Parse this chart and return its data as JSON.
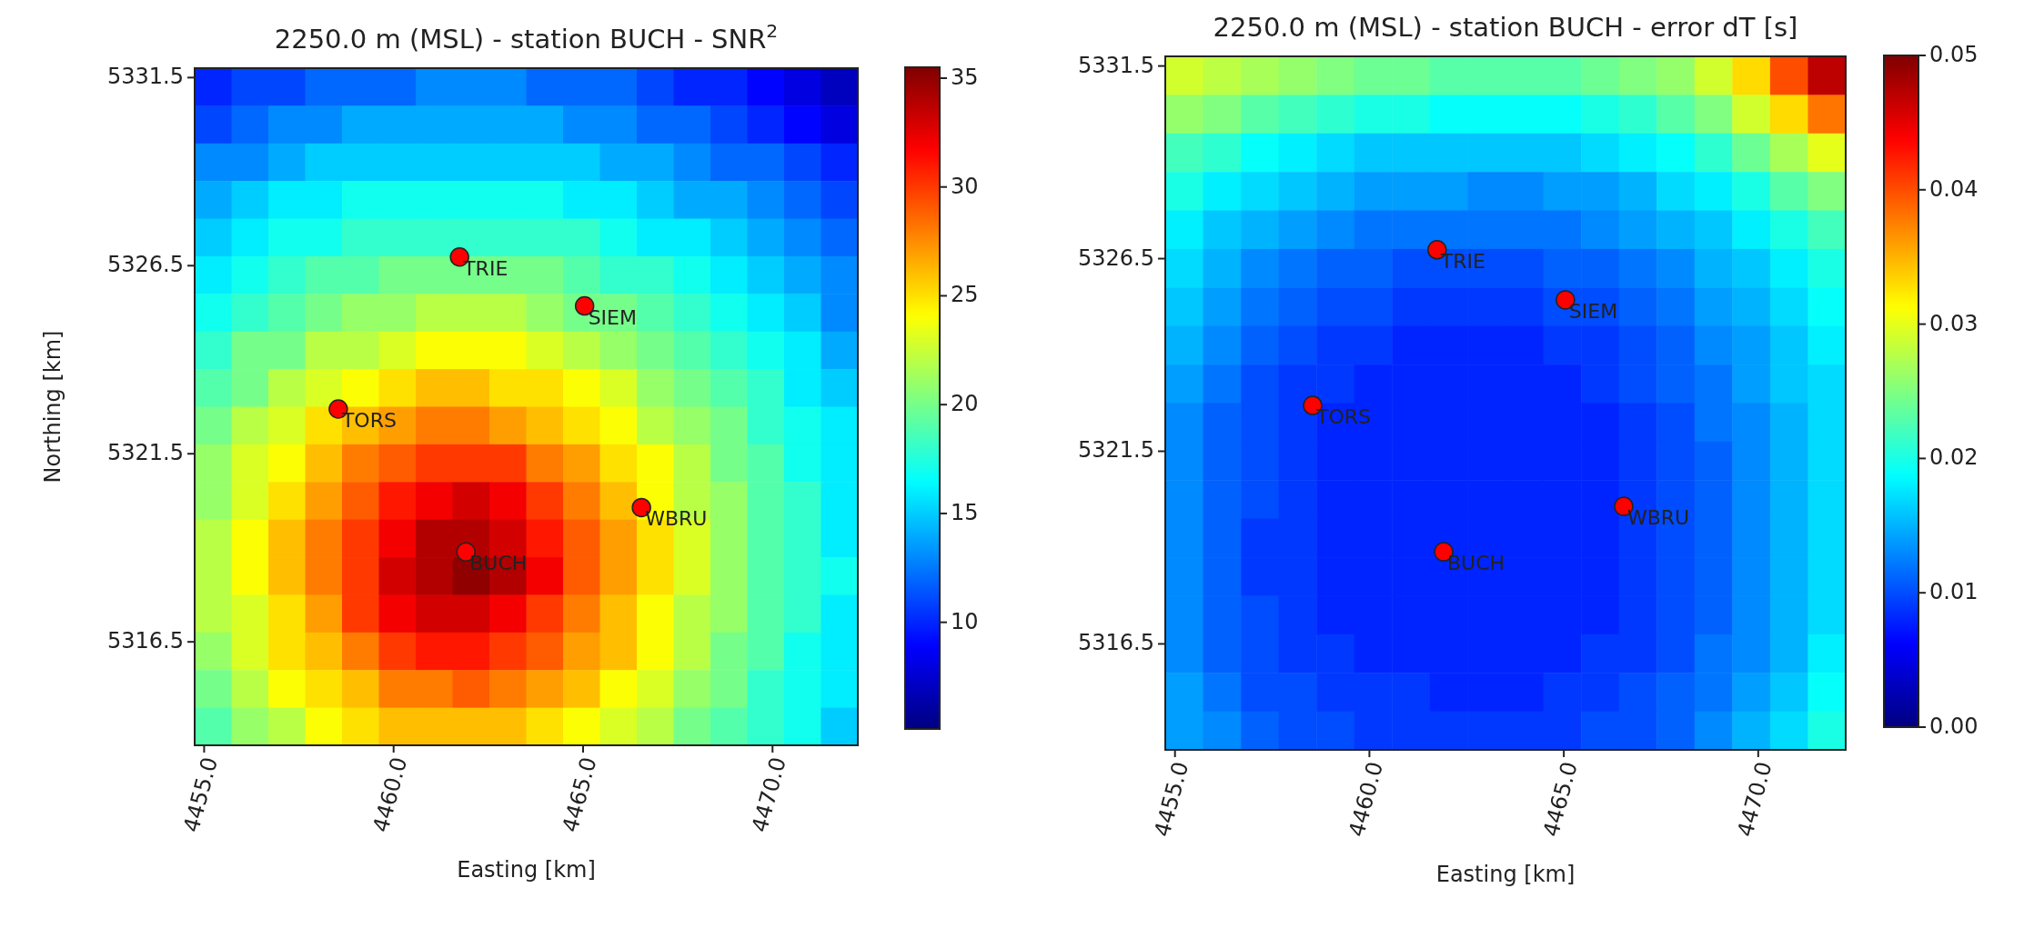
{
  "chart_data": [
    {
      "type": "heatmap",
      "title": "2250.0 m (MSL) - station BUCH - SNR$^{2}$",
      "xlabel": "Easting [km]",
      "ylabel": "Northing [km]",
      "xlim": [
        4454.75,
        4472.25
      ],
      "ylim": [
        5313.75,
        5331.75
      ],
      "xticks": [
        {
          "value": 4455,
          "label": "4455.0"
        },
        {
          "value": 4460,
          "label": "4460.0"
        },
        {
          "value": 4465,
          "label": "4465.0"
        },
        {
          "value": 4470,
          "label": "4470.0"
        }
      ],
      "yticks": [
        5316.5,
        5321.5,
        5326.5,
        5331.5
      ],
      "clim": [
        5.1,
        35.5
      ],
      "cticks": [
        10,
        15,
        20,
        25,
        30,
        35
      ],
      "cells": [
        [
          10,
          11,
          11,
          12,
          12,
          12,
          13,
          13,
          13,
          12,
          12,
          12,
          11,
          10,
          10,
          9,
          8,
          7
        ],
        [
          11,
          12,
          13,
          13,
          14,
          14,
          14,
          14,
          14,
          14,
          13,
          13,
          12,
          12,
          11,
          10,
          9,
          8
        ],
        [
          13,
          13,
          14,
          15,
          15,
          15,
          15,
          15,
          15,
          15,
          15,
          14,
          14,
          13,
          12,
          12,
          11,
          10
        ],
        [
          14,
          15,
          16,
          16,
          17,
          17,
          17,
          17,
          17,
          17,
          16,
          16,
          15,
          14,
          14,
          13,
          12,
          11
        ],
        [
          15,
          16,
          17,
          17,
          18,
          18,
          18,
          18,
          18,
          18,
          18,
          17,
          16,
          16,
          15,
          14,
          13,
          12
        ],
        [
          16,
          17,
          18,
          19,
          19,
          20,
          20,
          20,
          20,
          20,
          19,
          18,
          18,
          17,
          16,
          15,
          14,
          13
        ],
        [
          17,
          18,
          19,
          20,
          21,
          21,
          22,
          22,
          22,
          21,
          20,
          20,
          19,
          18,
          17,
          16,
          15,
          13
        ],
        [
          18,
          20,
          20,
          22,
          22,
          23,
          24,
          24,
          24,
          23,
          22,
          21,
          20,
          19,
          18,
          17,
          16,
          14
        ],
        [
          19,
          20,
          22,
          23,
          24,
          25,
          26,
          26,
          25,
          25,
          24,
          23,
          21,
          20,
          19,
          18,
          16,
          15
        ],
        [
          20,
          22,
          23,
          25,
          26,
          27,
          28,
          28,
          27,
          26,
          25,
          24,
          22,
          21,
          20,
          18,
          17,
          16
        ],
        [
          21,
          23,
          24,
          26,
          28,
          29,
          30,
          30,
          30,
          28,
          27,
          25,
          24,
          22,
          20,
          19,
          17,
          16
        ],
        [
          21,
          23,
          25,
          27,
          29,
          31,
          32,
          33,
          32,
          30,
          28,
          26,
          24,
          22,
          21,
          19,
          18,
          16
        ],
        [
          22,
          24,
          26,
          28,
          30,
          32,
          34,
          34,
          33,
          31,
          29,
          27,
          25,
          23,
          21,
          19,
          18,
          16
        ],
        [
          22,
          24,
          26,
          28,
          30,
          33,
          34,
          35,
          34,
          32,
          29,
          27,
          25,
          23,
          21,
          19,
          18,
          17
        ],
        [
          22,
          23,
          25,
          27,
          30,
          32,
          33,
          33,
          32,
          30,
          28,
          26,
          24,
          22,
          21,
          19,
          18,
          16
        ],
        [
          21,
          23,
          25,
          26,
          28,
          30,
          31,
          31,
          30,
          29,
          27,
          26,
          24,
          22,
          20,
          19,
          17,
          16
        ],
        [
          20,
          22,
          24,
          25,
          26,
          28,
          28,
          29,
          28,
          27,
          26,
          24,
          23,
          21,
          20,
          18,
          17,
          16
        ],
        [
          19,
          21,
          22,
          24,
          25,
          26,
          26,
          26,
          26,
          25,
          24,
          23,
          22,
          20,
          19,
          18,
          17,
          15
        ]
      ],
      "marker": "circle",
      "series": [
        {
          "type": "scatter",
          "color": "#ff0000",
          "x": [
            4461.74,
            4465.04,
            4458.54,
            4466.54,
            4461.91
          ],
          "values": [
            5326.73,
            5325.43,
            5322.69,
            5320.07,
            5318.89
          ]
        }
      ],
      "annotations": [
        {
          "text": "TRIE",
          "x": 4461.74,
          "y": 5326.73
        },
        {
          "text": "SIEM",
          "x": 4465.04,
          "y": 5325.43
        },
        {
          "text": "TORS",
          "x": 4458.54,
          "y": 5322.69
        },
        {
          "text": "WBRU",
          "x": 4466.54,
          "y": 5320.07
        },
        {
          "text": "BUCH",
          "x": 4461.91,
          "y": 5318.89
        }
      ]
    },
    {
      "type": "heatmap",
      "title": "2250.0 m (MSL) - station BUCH - error dT [s]",
      "xlabel": "Easting [km]",
      "xlim": [
        4454.75,
        4472.25
      ],
      "ylim": [
        5313.75,
        5331.75
      ],
      "xticks": [
        {
          "value": 4455,
          "label": "4455.0"
        },
        {
          "value": 4460,
          "label": "4460.0"
        },
        {
          "value": 4465,
          "label": "4465.0"
        },
        {
          "value": 4470,
          "label": "4470.0"
        }
      ],
      "yticks": [
        5316.5,
        5321.5,
        5326.5,
        5331.5
      ],
      "clim": [
        0,
        0.05
      ],
      "cticks": [
        {
          "value": 0,
          "label": "0.00"
        },
        0.01,
        0.02,
        0.03,
        0.04,
        0.05
      ],
      "cells": [
        [
          0.029,
          0.028,
          0.027,
          0.026,
          0.025,
          0.024,
          0.024,
          0.023,
          0.023,
          0.023,
          0.023,
          0.024,
          0.025,
          0.026,
          0.029,
          0.033,
          0.04,
          0.047
        ],
        [
          0.026,
          0.025,
          0.023,
          0.022,
          0.021,
          0.02,
          0.02,
          0.019,
          0.019,
          0.019,
          0.019,
          0.02,
          0.021,
          0.023,
          0.025,
          0.029,
          0.033,
          0.038
        ],
        [
          0.022,
          0.021,
          0.019,
          0.018,
          0.017,
          0.016,
          0.016,
          0.016,
          0.016,
          0.016,
          0.016,
          0.017,
          0.018,
          0.019,
          0.021,
          0.024,
          0.027,
          0.03
        ],
        [
          0.02,
          0.018,
          0.017,
          0.016,
          0.015,
          0.014,
          0.014,
          0.014,
          0.013,
          0.013,
          0.014,
          0.014,
          0.015,
          0.017,
          0.018,
          0.02,
          0.023,
          0.025
        ],
        [
          0.018,
          0.016,
          0.015,
          0.014,
          0.013,
          0.012,
          0.012,
          0.012,
          0.012,
          0.012,
          0.012,
          0.013,
          0.014,
          0.015,
          0.016,
          0.018,
          0.02,
          0.022
        ],
        [
          0.017,
          0.015,
          0.013,
          0.012,
          0.011,
          0.011,
          0.01,
          0.01,
          0.01,
          0.01,
          0.011,
          0.011,
          0.012,
          0.013,
          0.015,
          0.016,
          0.018,
          0.02
        ],
        [
          0.016,
          0.014,
          0.012,
          0.011,
          0.01,
          0.01,
          0.009,
          0.009,
          0.009,
          0.009,
          0.01,
          0.01,
          0.011,
          0.012,
          0.014,
          0.015,
          0.017,
          0.019
        ],
        [
          0.015,
          0.013,
          0.011,
          0.01,
          0.009,
          0.009,
          0.008,
          0.008,
          0.008,
          0.008,
          0.009,
          0.009,
          0.01,
          0.011,
          0.013,
          0.014,
          0.016,
          0.018
        ],
        [
          0.014,
          0.012,
          0.01,
          0.009,
          0.009,
          0.008,
          0.008,
          0.008,
          0.008,
          0.008,
          0.008,
          0.009,
          0.01,
          0.011,
          0.012,
          0.014,
          0.016,
          0.017
        ],
        [
          0.013,
          0.011,
          0.01,
          0.009,
          0.008,
          0.008,
          0.008,
          0.008,
          0.008,
          0.008,
          0.008,
          0.008,
          0.009,
          0.01,
          0.012,
          0.013,
          0.015,
          0.017
        ],
        [
          0.013,
          0.011,
          0.01,
          0.009,
          0.008,
          0.008,
          0.008,
          0.008,
          0.008,
          0.008,
          0.008,
          0.008,
          0.009,
          0.01,
          0.011,
          0.013,
          0.015,
          0.017
        ],
        [
          0.013,
          0.011,
          0.01,
          0.009,
          0.008,
          0.008,
          0.008,
          0.008,
          0.008,
          0.008,
          0.008,
          0.008,
          0.009,
          0.01,
          0.011,
          0.013,
          0.015,
          0.017
        ],
        [
          0.013,
          0.011,
          0.009,
          0.009,
          0.008,
          0.008,
          0.008,
          0.008,
          0.008,
          0.008,
          0.008,
          0.008,
          0.009,
          0.01,
          0.011,
          0.013,
          0.015,
          0.017
        ],
        [
          0.013,
          0.011,
          0.009,
          0.009,
          0.008,
          0.008,
          0.008,
          0.008,
          0.008,
          0.008,
          0.008,
          0.008,
          0.009,
          0.01,
          0.011,
          0.013,
          0.015,
          0.017
        ],
        [
          0.013,
          0.011,
          0.01,
          0.009,
          0.008,
          0.008,
          0.008,
          0.008,
          0.008,
          0.008,
          0.008,
          0.008,
          0.009,
          0.01,
          0.011,
          0.013,
          0.015,
          0.017
        ],
        [
          0.013,
          0.011,
          0.01,
          0.009,
          0.009,
          0.008,
          0.008,
          0.008,
          0.008,
          0.008,
          0.008,
          0.009,
          0.009,
          0.01,
          0.012,
          0.013,
          0.015,
          0.018
        ],
        [
          0.014,
          0.012,
          0.01,
          0.01,
          0.009,
          0.009,
          0.009,
          0.008,
          0.008,
          0.008,
          0.009,
          0.009,
          0.01,
          0.011,
          0.012,
          0.014,
          0.016,
          0.019
        ],
        [
          0.014,
          0.013,
          0.011,
          0.01,
          0.01,
          0.009,
          0.009,
          0.009,
          0.009,
          0.009,
          0.009,
          0.01,
          0.01,
          0.011,
          0.013,
          0.015,
          0.017,
          0.02
        ]
      ],
      "marker": "circle",
      "series": [
        {
          "type": "scatter",
          "color": "#ff0000",
          "x": [
            4461.74,
            4465.04,
            4458.54,
            4466.54,
            4461.91
          ],
          "values": [
            5326.73,
            5325.43,
            5322.69,
            5320.07,
            5318.89
          ]
        }
      ],
      "annotations": [
        {
          "text": "TRIE",
          "x": 4461.74,
          "y": 5326.73
        },
        {
          "text": "SIEM",
          "x": 4465.04,
          "y": 5325.43
        },
        {
          "text": "TORS",
          "x": 4458.54,
          "y": 5322.69
        },
        {
          "text": "WBRU",
          "x": 4466.54,
          "y": 5320.07
        },
        {
          "text": "BUCH",
          "x": 4461.91,
          "y": 5318.89
        }
      ]
    }
  ]
}
